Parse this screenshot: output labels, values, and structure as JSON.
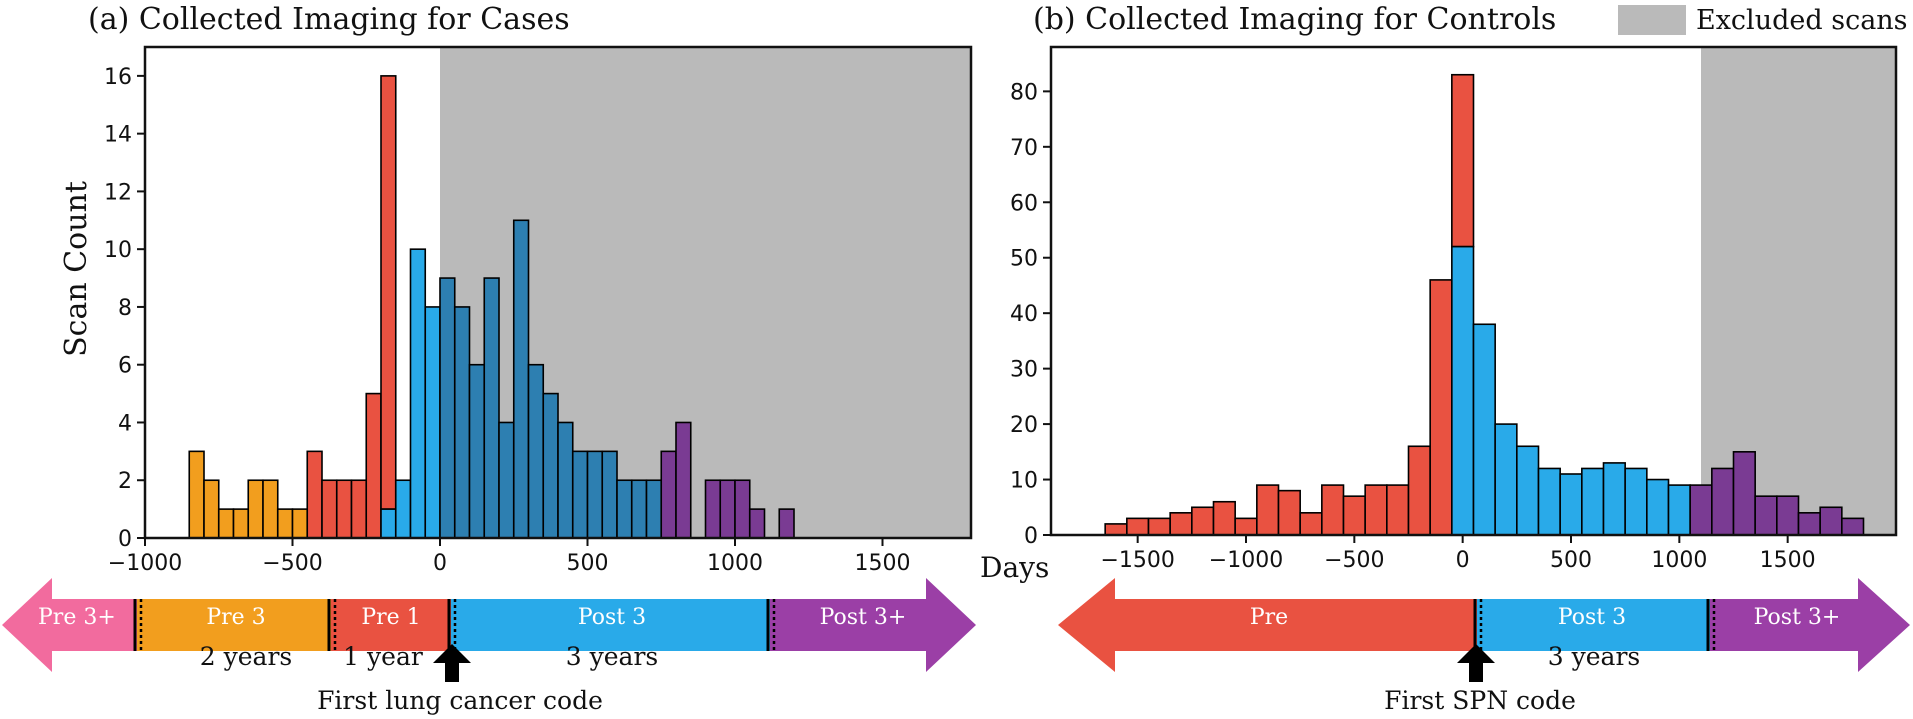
{
  "colors": {
    "pre3plus": "#f26b9e",
    "pre3": "#f29e1e",
    "pre1": "#e95241",
    "post3": "#29aae9",
    "post3_dark": "#2d7fb1",
    "post3plus": "#9b3fa6",
    "post3plus_bar": "#7a3b93",
    "excluded": "#bababa"
  },
  "legend": {
    "excluded_label": "Excluded scans"
  },
  "xlabel": "Days",
  "chart_data": [
    {
      "type": "bar",
      "title": "(a) Collected Imaging for Cases",
      "xlabel": "Days",
      "ylabel": "Scan Count",
      "xlim": [
        -1000,
        1800
      ],
      "ylim": [
        0,
        17
      ],
      "xticks": [
        -1000,
        -500,
        0,
        500,
        1000,
        1500
      ],
      "yticks": [
        0,
        2,
        4,
        6,
        8,
        10,
        12,
        14,
        16
      ],
      "xtick_labels": [
        "−1000",
        "−500",
        "0",
        "500",
        "1000",
        "1500"
      ],
      "ytick_labels": [
        "0",
        "2",
        "4",
        "6",
        "8",
        "10",
        "12",
        "14",
        "16"
      ],
      "bin_width": 50,
      "excluded_region": {
        "from": 0,
        "to": 1800
      },
      "bars": [
        {
          "x": -850,
          "count": 3,
          "group": "pre3"
        },
        {
          "x": -800,
          "count": 2,
          "group": "pre3"
        },
        {
          "x": -750,
          "count": 1,
          "group": "pre3"
        },
        {
          "x": -700,
          "count": 1,
          "group": "pre3"
        },
        {
          "x": -650,
          "count": 2,
          "group": "pre3"
        },
        {
          "x": -600,
          "count": 2,
          "group": "pre3"
        },
        {
          "x": -550,
          "count": 1,
          "group": "pre3"
        },
        {
          "x": -500,
          "count": 1,
          "group": "pre3"
        },
        {
          "x": -450,
          "count": 3,
          "group": "pre1"
        },
        {
          "x": -400,
          "count": 2,
          "group": "pre1"
        },
        {
          "x": -350,
          "count": 2,
          "group": "pre1"
        },
        {
          "x": -300,
          "count": 2,
          "group": "pre1"
        },
        {
          "x": -250,
          "count": 5,
          "group": "pre1"
        },
        {
          "x": -200,
          "count": 16,
          "group": "pre1",
          "post_part": 1
        },
        {
          "x": -150,
          "count": 2,
          "group": "post3"
        },
        {
          "x": -100,
          "count": 10,
          "group": "post3"
        },
        {
          "x": -50,
          "count": 8,
          "group": "post3"
        },
        {
          "x": 0,
          "count": 9,
          "group": "post3"
        },
        {
          "x": 50,
          "count": 8,
          "group": "post3"
        },
        {
          "x": 100,
          "count": 6,
          "group": "post3"
        },
        {
          "x": 150,
          "count": 9,
          "group": "post3"
        },
        {
          "x": 200,
          "count": 4,
          "group": "post3"
        },
        {
          "x": 250,
          "count": 11,
          "group": "post3"
        },
        {
          "x": 300,
          "count": 6,
          "group": "post3"
        },
        {
          "x": 350,
          "count": 5,
          "group": "post3"
        },
        {
          "x": 400,
          "count": 4,
          "group": "post3"
        },
        {
          "x": 450,
          "count": 3,
          "group": "post3"
        },
        {
          "x": 500,
          "count": 3,
          "group": "post3"
        },
        {
          "x": 550,
          "count": 3,
          "group": "post3"
        },
        {
          "x": 600,
          "count": 2,
          "group": "post3"
        },
        {
          "x": 650,
          "count": 2,
          "group": "post3"
        },
        {
          "x": 700,
          "count": 2,
          "group": "post3"
        },
        {
          "x": 750,
          "count": 3,
          "group": "post3plus"
        },
        {
          "x": 800,
          "count": 4,
          "group": "post3plus"
        },
        {
          "x": 850,
          "count": 0,
          "group": "post3plus"
        },
        {
          "x": 900,
          "count": 2,
          "group": "post3plus"
        },
        {
          "x": 950,
          "count": 2,
          "group": "post3plus"
        },
        {
          "x": 1000,
          "count": 2,
          "group": "post3plus"
        },
        {
          "x": 1050,
          "count": 1,
          "group": "post3plus"
        },
        {
          "x": 1100,
          "count": 0,
          "group": "post3plus"
        },
        {
          "x": 1150,
          "count": 1,
          "group": "post3plus"
        }
      ]
    },
    {
      "type": "bar",
      "title": "(b) Collected Imaging for Controls",
      "xlabel": "Days",
      "ylabel": "",
      "xlim": [
        -1900,
        2000
      ],
      "ylim": [
        0,
        88
      ],
      "xticks": [
        -1500,
        -1000,
        -500,
        0,
        500,
        1000,
        1500
      ],
      "yticks": [
        0,
        10,
        20,
        30,
        40,
        50,
        60,
        70,
        80
      ],
      "xtick_labels": [
        "−1500",
        "−1000",
        "−500",
        "0",
        "500",
        "1000",
        "1500"
      ],
      "ytick_labels": [
        "0",
        "10",
        "20",
        "30",
        "40",
        "50",
        "60",
        "70",
        "80"
      ],
      "bin_width": 100,
      "excluded_region": {
        "from": 1100,
        "to": 2000
      },
      "bars": [
        {
          "x": -1650,
          "count": 2,
          "group": "pre"
        },
        {
          "x": -1550,
          "count": 3,
          "group": "pre"
        },
        {
          "x": -1450,
          "count": 3,
          "group": "pre"
        },
        {
          "x": -1350,
          "count": 4,
          "group": "pre"
        },
        {
          "x": -1250,
          "count": 5,
          "group": "pre"
        },
        {
          "x": -1150,
          "count": 6,
          "group": "pre"
        },
        {
          "x": -1050,
          "count": 3,
          "group": "pre"
        },
        {
          "x": -950,
          "count": 9,
          "group": "pre"
        },
        {
          "x": -850,
          "count": 8,
          "group": "pre"
        },
        {
          "x": -750,
          "count": 4,
          "group": "pre"
        },
        {
          "x": -650,
          "count": 9,
          "group": "pre"
        },
        {
          "x": -550,
          "count": 7,
          "group": "pre"
        },
        {
          "x": -450,
          "count": 9,
          "group": "pre"
        },
        {
          "x": -350,
          "count": 9,
          "group": "pre"
        },
        {
          "x": -250,
          "count": 16,
          "group": "pre"
        },
        {
          "x": -150,
          "count": 46,
          "group": "pre"
        },
        {
          "x": -50,
          "count": 83,
          "group": "pre",
          "post_part": 52
        },
        {
          "x": 50,
          "count": 38,
          "group": "post3"
        },
        {
          "x": 150,
          "count": 20,
          "group": "post3"
        },
        {
          "x": 250,
          "count": 16,
          "group": "post3"
        },
        {
          "x": 350,
          "count": 12,
          "group": "post3"
        },
        {
          "x": 450,
          "count": 11,
          "group": "post3"
        },
        {
          "x": 550,
          "count": 12,
          "group": "post3"
        },
        {
          "x": 650,
          "count": 13,
          "group": "post3"
        },
        {
          "x": 750,
          "count": 12,
          "group": "post3"
        },
        {
          "x": 850,
          "count": 10,
          "group": "post3"
        },
        {
          "x": 950,
          "count": 9,
          "group": "post3"
        },
        {
          "x": 1050,
          "count": 9,
          "group": "post3plus"
        },
        {
          "x": 1150,
          "count": 12,
          "group": "post3plus"
        },
        {
          "x": 1250,
          "count": 15,
          "group": "post3plus"
        },
        {
          "x": 1350,
          "count": 7,
          "group": "post3plus"
        },
        {
          "x": 1450,
          "count": 7,
          "group": "post3plus"
        },
        {
          "x": 1550,
          "count": 4,
          "group": "post3plus"
        },
        {
          "x": 1650,
          "count": 5,
          "group": "post3plus"
        },
        {
          "x": 1750,
          "count": 3,
          "group": "post3plus"
        }
      ]
    }
  ],
  "timeline_a": {
    "segments": [
      "Pre 3+",
      "Pre 3",
      "Pre 1",
      "Post 3",
      "Post 3+"
    ],
    "durations": [
      "2 years",
      "1 year",
      "3 years"
    ],
    "event": "First lung cancer code"
  },
  "timeline_b": {
    "segments": [
      "Pre",
      "Post 3",
      "Post 3+"
    ],
    "durations": [
      "3 years"
    ],
    "event": "First SPN code"
  }
}
